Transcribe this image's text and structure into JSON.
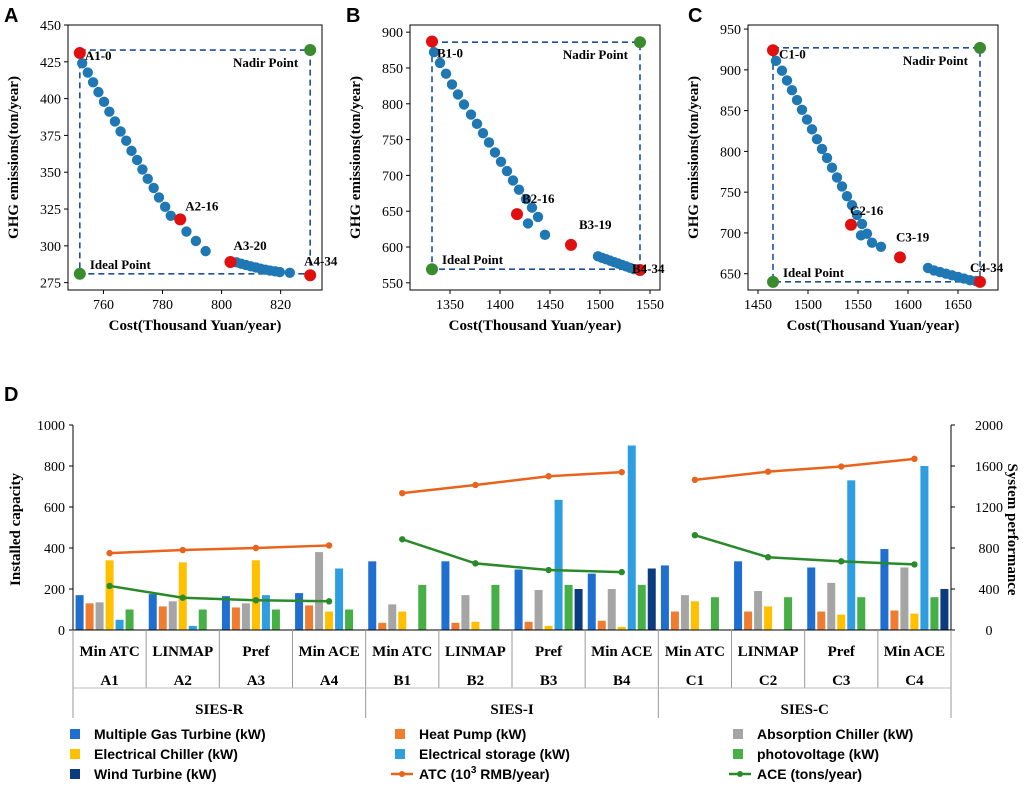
{
  "chart_data": [
    {
      "type": "scatter",
      "panel": "A",
      "xlabel": "Cost(Thousand Yuan/year)",
      "ylabel": "GHG emissions(ton/year)",
      "xlim": [
        748,
        834
      ],
      "ylim": [
        270,
        450
      ],
      "xticks": [
        760,
        780,
        800,
        820
      ],
      "yticks": [
        275,
        300,
        325,
        350,
        375,
        400,
        425,
        450
      ],
      "pareto": [
        [
          752.8,
          424
        ],
        [
          754.7,
          417.7
        ],
        [
          756.5,
          411.1
        ],
        [
          758.3,
          404.4
        ],
        [
          760.2,
          397.8
        ],
        [
          762,
          391.1
        ],
        [
          763.9,
          384.5
        ],
        [
          765.8,
          377.7
        ],
        [
          767.7,
          371.4
        ],
        [
          769.5,
          364.5
        ],
        [
          771.4,
          358.3
        ],
        [
          773.2,
          351.9
        ],
        [
          775,
          345.5
        ],
        [
          777,
          339.3
        ],
        [
          778.8,
          332.9
        ],
        [
          780.9,
          326.5
        ],
        [
          782.8,
          320.4
        ],
        [
          788.1,
          309.7
        ],
        [
          791.3,
          303.3
        ],
        [
          794.6,
          296.4
        ],
        [
          805,
          288.8
        ],
        [
          806.6,
          287.9
        ],
        [
          808.2,
          287
        ],
        [
          809.9,
          286.1
        ],
        [
          811.6,
          285.3
        ],
        [
          813.2,
          284.5
        ],
        [
          814.8,
          283.8
        ],
        [
          816.4,
          283.2
        ],
        [
          818.1,
          282.7
        ],
        [
          819.7,
          282.2
        ],
        [
          823.1,
          281.7
        ]
      ],
      "highlighted": [
        {
          "label": "A1-0",
          "x": 752,
          "y": 431
        },
        {
          "label": "A2-16",
          "x": 786,
          "y": 318
        },
        {
          "label": "A3-20",
          "x": 803,
          "y": 289
        },
        {
          "label": "A4-34",
          "x": 830,
          "y": 280
        }
      ],
      "ideal": {
        "label": "Ideal Point",
        "x": 752,
        "y": 281
      },
      "nadir": {
        "label": "Nadir Point",
        "x": 830,
        "y": 433
      }
    },
    {
      "type": "scatter",
      "panel": "B",
      "xlabel": "Cost(Thousand Yuan/year)",
      "ylabel": "GHG emissions(ton/year)",
      "xlim": [
        1310,
        1560
      ],
      "ylim": [
        540,
        910
      ],
      "xticks": [
        1350,
        1400,
        1450,
        1500,
        1550
      ],
      "yticks": [
        550,
        600,
        650,
        700,
        750,
        800,
        850,
        900
      ],
      "pareto": [
        [
          1334,
          872
        ],
        [
          1340,
          857
        ],
        [
          1346,
          842
        ],
        [
          1352,
          827
        ],
        [
          1358,
          813
        ],
        [
          1364,
          799
        ],
        [
          1371,
          785
        ],
        [
          1377,
          772
        ],
        [
          1383,
          759
        ],
        [
          1389,
          746
        ],
        [
          1395,
          732
        ],
        [
          1401,
          719
        ],
        [
          1407,
          706
        ],
        [
          1413,
          693
        ],
        [
          1419,
          680
        ],
        [
          1426,
          667
        ],
        [
          1432,
          655
        ],
        [
          1438,
          642
        ],
        [
          1428,
          633
        ],
        [
          1445,
          617
        ],
        [
          1498,
          587
        ],
        [
          1502,
          585
        ],
        [
          1506,
          583
        ],
        [
          1510,
          581
        ],
        [
          1514,
          579
        ],
        [
          1518,
          577
        ],
        [
          1522,
          575
        ],
        [
          1526,
          573
        ],
        [
          1530,
          571
        ],
        [
          1534,
          569
        ]
      ],
      "highlighted": [
        {
          "label": "B1-0",
          "x": 1332,
          "y": 887
        },
        {
          "label": "B2-16",
          "x": 1417,
          "y": 646
        },
        {
          "label": "B3-19",
          "x": 1471,
          "y": 603
        },
        {
          "label": "B4-34",
          "x": 1540,
          "y": 568
        }
      ],
      "ideal": {
        "label": "Ideal Point",
        "x": 1332,
        "y": 569
      },
      "nadir": {
        "label": "Nadir Point",
        "x": 1540,
        "y": 886
      }
    },
    {
      "type": "scatter",
      "panel": "C",
      "xlabel": "Cost(Thousand Yuan/year)",
      "ylabel": "GHG emissions(ton/year)",
      "xlim": [
        1440,
        1690
      ],
      "ylim": [
        630,
        955
      ],
      "xticks": [
        1450,
        1500,
        1550,
        1600,
        1650
      ],
      "yticks": [
        650,
        700,
        750,
        800,
        850,
        900,
        950
      ],
      "pareto": [
        [
          1468,
          911
        ],
        [
          1474,
          899
        ],
        [
          1479,
          887
        ],
        [
          1484,
          875
        ],
        [
          1489,
          863
        ],
        [
          1494,
          851
        ],
        [
          1499,
          839
        ],
        [
          1504,
          827
        ],
        [
          1509,
          815
        ],
        [
          1514,
          803
        ],
        [
          1519,
          792
        ],
        [
          1524,
          780
        ],
        [
          1529,
          768
        ],
        [
          1534,
          757
        ],
        [
          1539,
          745
        ],
        [
          1544,
          734
        ],
        [
          1549,
          722
        ],
        [
          1554,
          711
        ],
        [
          1559,
          699
        ],
        [
          1564,
          688
        ],
        [
          1553,
          697
        ],
        [
          1573,
          683
        ],
        [
          1620,
          657
        ],
        [
          1626,
          654
        ],
        [
          1632,
          652
        ],
        [
          1638,
          650
        ],
        [
          1644,
          648
        ],
        [
          1650,
          646
        ],
        [
          1656,
          644
        ],
        [
          1662,
          642
        ],
        [
          1668,
          641
        ]
      ],
      "highlighted": [
        {
          "label": "C1-0",
          "x": 1465,
          "y": 924
        },
        {
          "label": "C2-16",
          "x": 1543,
          "y": 710
        },
        {
          "label": "C3-19",
          "x": 1592,
          "y": 670
        },
        {
          "label": "C4-34",
          "x": 1672,
          "y": 640
        }
      ],
      "ideal": {
        "label": "Ideal Point",
        "x": 1465,
        "y": 640
      },
      "nadir": {
        "label": "Nadir Point",
        "x": 1672,
        "y": 927
      }
    },
    {
      "type": "bar",
      "panel": "D",
      "ylabel": "Installed capacity",
      "y2label": "System performance",
      "ylim": [
        0,
        1000
      ],
      "y2lim": [
        0,
        2000
      ],
      "yticks": [
        0,
        200,
        400,
        600,
        800,
        1000
      ],
      "y2ticks": [
        0,
        400,
        800,
        1200,
        1600,
        2000
      ],
      "methods": [
        "Min ATC",
        "LINMAP",
        "Pref",
        "Min ACE",
        "Min ATC",
        "LINMAP",
        "Pref",
        "Min ACE",
        "Min ATC",
        "LINMAP",
        "Pref",
        "Min ACE"
      ],
      "categories": [
        "A1",
        "A2",
        "A3",
        "A4",
        "B1",
        "B2",
        "B3",
        "B4",
        "C1",
        "C2",
        "C3",
        "C4"
      ],
      "groups": [
        "SIES-R",
        "SIES-I",
        "SIES-C"
      ],
      "series": [
        {
          "name": "Multiple Gas Turbine (kW)",
          "color": "#1f6fd0",
          "values": [
            170,
            175,
            165,
            180,
            335,
            335,
            295,
            275,
            315,
            335,
            305,
            395
          ]
        },
        {
          "name": "Heat Pump (kW)",
          "color": "#ee7d31",
          "values": [
            130,
            115,
            110,
            120,
            35,
            35,
            40,
            45,
            90,
            90,
            90,
            95
          ]
        },
        {
          "name": "Absorption Chiller (kW)",
          "color": "#a5a5a5",
          "values": [
            135,
            140,
            130,
            380,
            125,
            170,
            195,
            200,
            170,
            190,
            230,
            305
          ]
        },
        {
          "name": "Electrical Chiller (kW)",
          "color": "#ffc000",
          "values": [
            340,
            330,
            340,
            90,
            90,
            40,
            20,
            15,
            140,
            115,
            75,
            80
          ]
        },
        {
          "name": "Electrical storage (kW)",
          "color": "#2e9ee0",
          "values": [
            50,
            20,
            170,
            300,
            0,
            0,
            635,
            900,
            0,
            0,
            730,
            800
          ]
        },
        {
          "name": "photovoltage (kW)",
          "color": "#46b047",
          "values": [
            100,
            100,
            100,
            100,
            220,
            220,
            220,
            220,
            160,
            160,
            160,
            160
          ]
        },
        {
          "name": "Wind Turbine (kW)",
          "color": "#0b3c7f",
          "values": [
            0,
            0,
            0,
            0,
            0,
            0,
            200,
            300,
            0,
            0,
            0,
            200
          ]
        }
      ],
      "lines": [
        {
          "name": "ATC (10",
          "superscript": "3",
          "name_suffix": " RMB/year)",
          "color": "#e8641c",
          "axis": "right",
          "segments": [
            [
              750,
              780,
              800,
              825
            ],
            [
              1335,
              1415,
              1500,
              1540
            ],
            [
              1465,
              1545,
              1595,
              1670
            ]
          ]
        },
        {
          "name": "ACE (tons/year)",
          "color": "#2a8a2a",
          "axis": "right",
          "segments": [
            [
              430,
              315,
              290,
              280
            ],
            [
              885,
              650,
              585,
              565
            ],
            [
              925,
              710,
              670,
              640
            ]
          ]
        }
      ]
    }
  ]
}
